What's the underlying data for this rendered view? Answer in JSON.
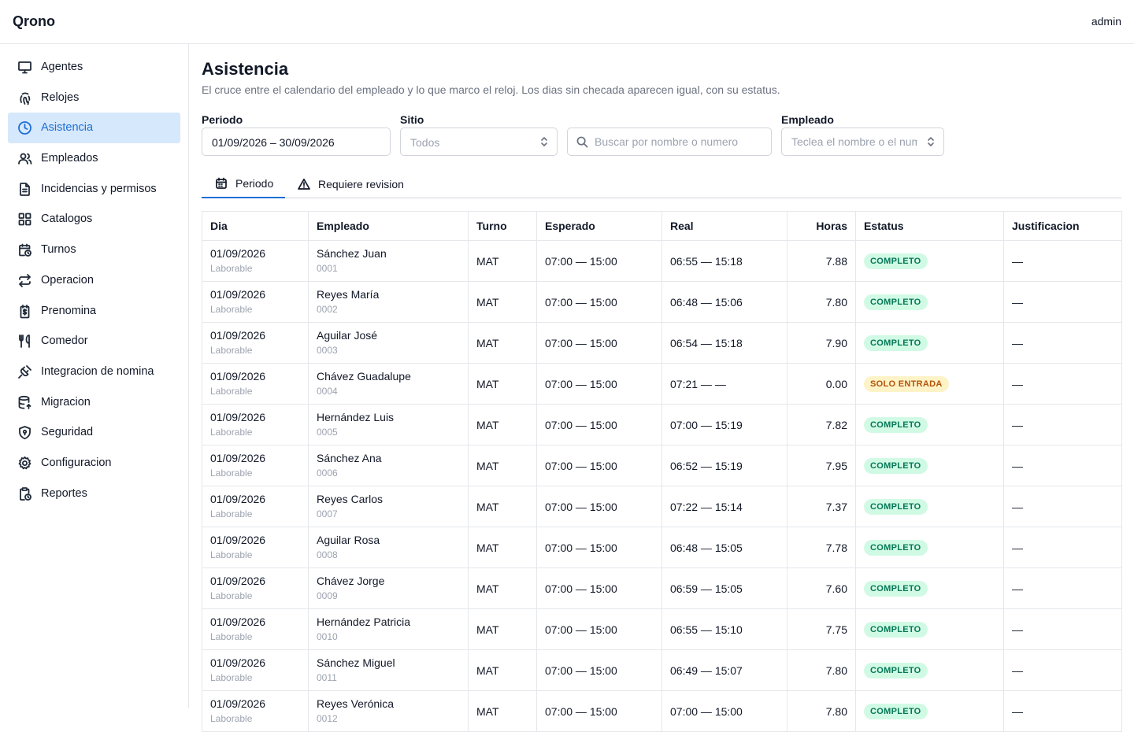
{
  "app": {
    "brand": "Qrono",
    "user": "admin"
  },
  "sidebar": {
    "items": [
      {
        "label": "Agentes",
        "icon": "monitor-icon",
        "active": false
      },
      {
        "label": "Relojes",
        "icon": "fingerprint-icon",
        "active": false
      },
      {
        "label": "Asistencia",
        "icon": "clock-icon",
        "active": true
      },
      {
        "label": "Empleados",
        "icon": "users-icon",
        "active": false
      },
      {
        "label": "Incidencias y permisos",
        "icon": "file-text-icon",
        "active": false
      },
      {
        "label": "Catalogos",
        "icon": "grid-icon",
        "active": false
      },
      {
        "label": "Turnos",
        "icon": "calendar-clock-icon",
        "active": false
      },
      {
        "label": "Operacion",
        "icon": "repeat-icon",
        "active": false
      },
      {
        "label": "Prenomina",
        "icon": "receipt-icon",
        "active": false
      },
      {
        "label": "Comedor",
        "icon": "utensils-icon",
        "active": false
      },
      {
        "label": "Integracion de nomina",
        "icon": "plug-icon",
        "active": false
      },
      {
        "label": "Migracion",
        "icon": "database-upload-icon",
        "active": false
      },
      {
        "label": "Seguridad",
        "icon": "shield-icon",
        "active": false
      },
      {
        "label": "Configuracion",
        "icon": "gear-icon",
        "active": false
      },
      {
        "label": "Reportes",
        "icon": "clipboard-clock-icon",
        "active": false
      }
    ]
  },
  "page": {
    "title": "Asistencia",
    "subtitle": "El cruce entre el calendario del empleado y lo que marco el reloj. Los dias sin checada aparecen igual, con su estatus."
  },
  "filters": {
    "periodo": {
      "label": "Periodo",
      "value": "01/09/2026 – 30/09/2026"
    },
    "sitio": {
      "label": "Sitio",
      "placeholder": "Todos"
    },
    "search": {
      "placeholder": "Buscar por nombre o numero"
    },
    "empleado": {
      "label": "Empleado",
      "placeholder": "Teclea el nombre o el numero"
    }
  },
  "tabs": [
    {
      "label": "Periodo",
      "icon": "calendar-icon",
      "active": true
    },
    {
      "label": "Requiere revision",
      "icon": "warning-triangle-icon",
      "active": false
    }
  ],
  "table": {
    "headers": {
      "dia": "Dia",
      "empleado": "Empleado",
      "turno": "Turno",
      "esperado": "Esperado",
      "real": "Real",
      "horas": "Horas",
      "estatus": "Estatus",
      "justificacion": "Justificacion"
    },
    "rows": [
      {
        "dia": "01/09/2026",
        "tipo": "Laborable",
        "nombre": "Sánchez Juan",
        "numero": "0001",
        "turno": "MAT",
        "esperado": "07:00 — 15:00",
        "real": "06:55 — 15:18",
        "horas": "7.88",
        "estatus": "COMPLETO",
        "estatus_type": "ok",
        "justificacion": "—"
      },
      {
        "dia": "01/09/2026",
        "tipo": "Laborable",
        "nombre": "Reyes María",
        "numero": "0002",
        "turno": "MAT",
        "esperado": "07:00 — 15:00",
        "real": "06:48 — 15:06",
        "horas": "7.80",
        "estatus": "COMPLETO",
        "estatus_type": "ok",
        "justificacion": "—"
      },
      {
        "dia": "01/09/2026",
        "tipo": "Laborable",
        "nombre": "Aguilar José",
        "numero": "0003",
        "turno": "MAT",
        "esperado": "07:00 — 15:00",
        "real": "06:54 — 15:18",
        "horas": "7.90",
        "estatus": "COMPLETO",
        "estatus_type": "ok",
        "justificacion": "—"
      },
      {
        "dia": "01/09/2026",
        "tipo": "Laborable",
        "nombre": "Chávez Guadalupe",
        "numero": "0004",
        "turno": "MAT",
        "esperado": "07:00 — 15:00",
        "real": "07:21 — —",
        "horas": "0.00",
        "estatus": "SOLO ENTRADA",
        "estatus_type": "warn",
        "justificacion": "—"
      },
      {
        "dia": "01/09/2026",
        "tipo": "Laborable",
        "nombre": "Hernández Luis",
        "numero": "0005",
        "turno": "MAT",
        "esperado": "07:00 — 15:00",
        "real": "07:00 — 15:19",
        "horas": "7.82",
        "estatus": "COMPLETO",
        "estatus_type": "ok",
        "justificacion": "—"
      },
      {
        "dia": "01/09/2026",
        "tipo": "Laborable",
        "nombre": "Sánchez Ana",
        "numero": "0006",
        "turno": "MAT",
        "esperado": "07:00 — 15:00",
        "real": "06:52 — 15:19",
        "horas": "7.95",
        "estatus": "COMPLETO",
        "estatus_type": "ok",
        "justificacion": "—"
      },
      {
        "dia": "01/09/2026",
        "tipo": "Laborable",
        "nombre": "Reyes Carlos",
        "numero": "0007",
        "turno": "MAT",
        "esperado": "07:00 — 15:00",
        "real": "07:22 — 15:14",
        "horas": "7.37",
        "estatus": "COMPLETO",
        "estatus_type": "ok",
        "justificacion": "—"
      },
      {
        "dia": "01/09/2026",
        "tipo": "Laborable",
        "nombre": "Aguilar Rosa",
        "numero": "0008",
        "turno": "MAT",
        "esperado": "07:00 — 15:00",
        "real": "06:48 — 15:05",
        "horas": "7.78",
        "estatus": "COMPLETO",
        "estatus_type": "ok",
        "justificacion": "—"
      },
      {
        "dia": "01/09/2026",
        "tipo": "Laborable",
        "nombre": "Chávez Jorge",
        "numero": "0009",
        "turno": "MAT",
        "esperado": "07:00 — 15:00",
        "real": "06:59 — 15:05",
        "horas": "7.60",
        "estatus": "COMPLETO",
        "estatus_type": "ok",
        "justificacion": "—"
      },
      {
        "dia": "01/09/2026",
        "tipo": "Laborable",
        "nombre": "Hernández Patricia",
        "numero": "0010",
        "turno": "MAT",
        "esperado": "07:00 — 15:00",
        "real": "06:55 — 15:10",
        "horas": "7.75",
        "estatus": "COMPLETO",
        "estatus_type": "ok",
        "justificacion": "—"
      },
      {
        "dia": "01/09/2026",
        "tipo": "Laborable",
        "nombre": "Sánchez Miguel",
        "numero": "0011",
        "turno": "MAT",
        "esperado": "07:00 — 15:00",
        "real": "06:49 — 15:07",
        "horas": "7.80",
        "estatus": "COMPLETO",
        "estatus_type": "ok",
        "justificacion": "—"
      },
      {
        "dia": "01/09/2026",
        "tipo": "Laborable",
        "nombre": "Reyes Verónica",
        "numero": "0012",
        "turno": "MAT",
        "esperado": "07:00 — 15:00",
        "real": "07:00 — 15:00",
        "horas": "7.80",
        "estatus": "COMPLETO",
        "estatus_type": "ok",
        "justificacion": "—"
      }
    ]
  },
  "colors": {
    "accent": "#1d6fd6",
    "active_bg": "#d6e8fb",
    "ok_bg": "#d1fae5",
    "ok_fg": "#047857",
    "warn_bg": "#fef3c7",
    "warn_fg": "#b45309"
  }
}
